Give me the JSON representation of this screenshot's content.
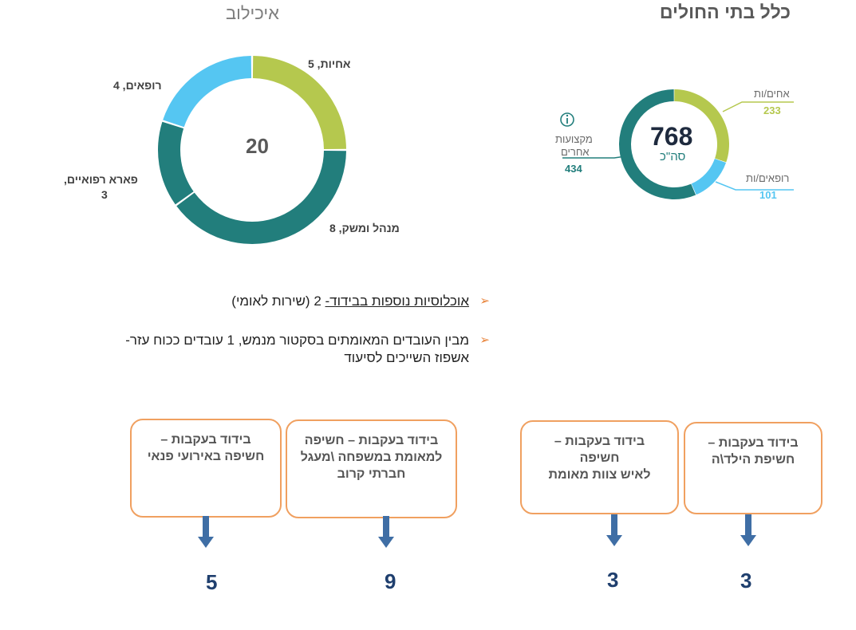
{
  "titles": {
    "all_hospitals": "כלל בתי החולים",
    "left_chart": "איכילוב"
  },
  "chart_data": [
    {
      "type": "pie",
      "variant": "donut",
      "title": "איכילוב",
      "center_total": "20",
      "slices": [
        {
          "label": "אחיות, 5",
          "name": "אחיות",
          "value": 5,
          "color": "#b5c84e"
        },
        {
          "label": "מנהל ומשק, 8",
          "name": "מנהל ומשק",
          "value": 8,
          "color": "#227e7c"
        },
        {
          "label": "פארא רפואיים, 3",
          "name": "פארא רפואיים",
          "value": 3,
          "color": "#227e7c"
        },
        {
          "label": "רופאים, 4",
          "name": "רופאים",
          "value": 4,
          "color": "#55c6f2"
        }
      ]
    },
    {
      "type": "pie",
      "variant": "donut",
      "title": "כלל בתי החולים",
      "center_total": "768",
      "center_caption": "סה\"כ",
      "slices": [
        {
          "name": "אחים/ות",
          "value": 233,
          "color": "#b5c84e"
        },
        {
          "name": "רופאים/ות",
          "value": 101,
          "color": "#55c6f2"
        },
        {
          "name": "מקצועות אחרים",
          "value": 434,
          "color": "#227e7c"
        }
      ]
    }
  ],
  "right_chart_text": {
    "total": "768",
    "caption": "סה\"כ",
    "nurses_label": "אחים/ות",
    "nurses_value": "233",
    "doctors_label": "רופאים/ות",
    "doctors_value": "101",
    "other_label_1": "מקצועות",
    "other_label_2": "אחרים",
    "other_value": "434",
    "info_icon": "info-icon"
  },
  "left_chart_text": {
    "total": "20",
    "label_nurses": "אחיות, 5",
    "label_admin": "מנהל ומשק, 8",
    "label_para_1": "פארא רפואיים,",
    "label_para_2": "3",
    "label_doctors": "רופאים, 4"
  },
  "bullets": {
    "b1_link": "אוכלוסיות נוספות בבידוד-",
    "b1_rest": " 2 (שירות לאומי)",
    "b2_line1": "מבין העובדים המאומתים בסקטור מנמש, 1 עובדים ככוח עזר-",
    "b2_line2": "אשפוז השייכים לסיעוד"
  },
  "boxes": [
    {
      "lines": [
        "בידוד בעקבות –",
        "חשיפה באירועי פנאי"
      ],
      "count": "5"
    },
    {
      "lines": [
        "בידוד בעקבות – חשיפה",
        "למאומת במשפחה \\מעגל",
        "חברתי קרוב"
      ],
      "count": "9"
    },
    {
      "lines": [
        "בידוד בעקבות –",
        "חשיפה",
        "לאיש צוות מאומת"
      ],
      "count": "3"
    },
    {
      "lines": [
        "בידוד בעקבות –",
        "חשיפת הילד\\ה"
      ],
      "count": "3"
    }
  ],
  "colors": {
    "box_border": "#f0a060",
    "arrow": "#3f6ea5",
    "count": "#1f3f6e",
    "bullet_marker": "#e8833a"
  }
}
